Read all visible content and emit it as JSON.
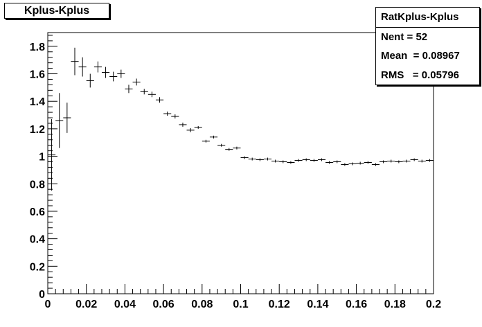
{
  "hist_title": "Kplus-Kplus",
  "stats": {
    "name": "RatKplus-Kplus",
    "entries_label": "Nent",
    "entries_value": "52",
    "mean_label": "Mean",
    "mean_value": "0.08967",
    "rms_label": "RMS",
    "rms_value": "0.05796"
  },
  "chart_data": {
    "type": "scatter",
    "title": "Kplus-Kplus",
    "xlabel": "",
    "ylabel": "",
    "xlim": [
      0,
      0.2
    ],
    "ylim": [
      0,
      1.9
    ],
    "grid": false,
    "legend": "none",
    "bin_half_width": 0.002,
    "x_ticks": [
      "0",
      "0.02",
      "0.04",
      "0.06",
      "0.08",
      "0.1",
      "0.12",
      "0.14",
      "0.16",
      "0.18",
      "0.2"
    ],
    "y_ticks": [
      "0",
      "0.2",
      "0.4",
      "0.6",
      "0.8",
      "1",
      "1.2",
      "1.4",
      "1.6",
      "1.8"
    ],
    "series": [
      {
        "x": [
          0.002,
          0.006,
          0.01,
          0.014,
          0.018,
          0.022,
          0.026,
          0.03,
          0.034,
          0.038,
          0.042,
          0.046,
          0.05,
          0.054,
          0.058,
          0.062,
          0.066,
          0.07,
          0.074,
          0.078,
          0.082,
          0.086,
          0.09,
          0.094,
          0.098,
          0.102,
          0.106,
          0.11,
          0.114,
          0.118,
          0.122,
          0.126,
          0.13,
          0.134,
          0.138,
          0.142,
          0.146,
          0.15,
          0.154,
          0.158,
          0.162,
          0.166,
          0.17,
          0.174,
          0.178,
          0.182,
          0.186,
          0.19,
          0.194,
          0.198
        ],
        "y": [
          1.01,
          1.26,
          1.28,
          1.69,
          1.65,
          1.55,
          1.65,
          1.61,
          1.58,
          1.6,
          1.49,
          1.54,
          1.47,
          1.45,
          1.41,
          1.31,
          1.29,
          1.23,
          1.19,
          1.21,
          1.11,
          1.14,
          1.08,
          1.05,
          1.06,
          0.99,
          0.98,
          0.975,
          0.98,
          0.965,
          0.96,
          0.955,
          0.97,
          0.975,
          0.97,
          0.975,
          0.955,
          0.96,
          0.94,
          0.945,
          0.95,
          0.955,
          0.94,
          0.96,
          0.965,
          0.96,
          0.965,
          0.975,
          0.965,
          0.97
        ],
        "err": [
          0.26,
          0.2,
          0.11,
          0.1,
          0.07,
          0.05,
          0.04,
          0.04,
          0.035,
          0.03,
          0.03,
          0.025,
          0.02,
          0.02,
          0.02,
          0.015,
          0.015,
          0.015,
          0.015,
          0.01,
          0.01,
          0.01,
          0.01,
          0.01,
          0.01,
          0.01,
          0.01,
          0.01,
          0.01,
          0.01,
          0.01,
          0.01,
          0.01,
          0.01,
          0.01,
          0.01,
          0.01,
          0.01,
          0.01,
          0.01,
          0.01,
          0.01,
          0.01,
          0.01,
          0.01,
          0.01,
          0.01,
          0.01,
          0.01,
          0.01
        ]
      }
    ]
  }
}
